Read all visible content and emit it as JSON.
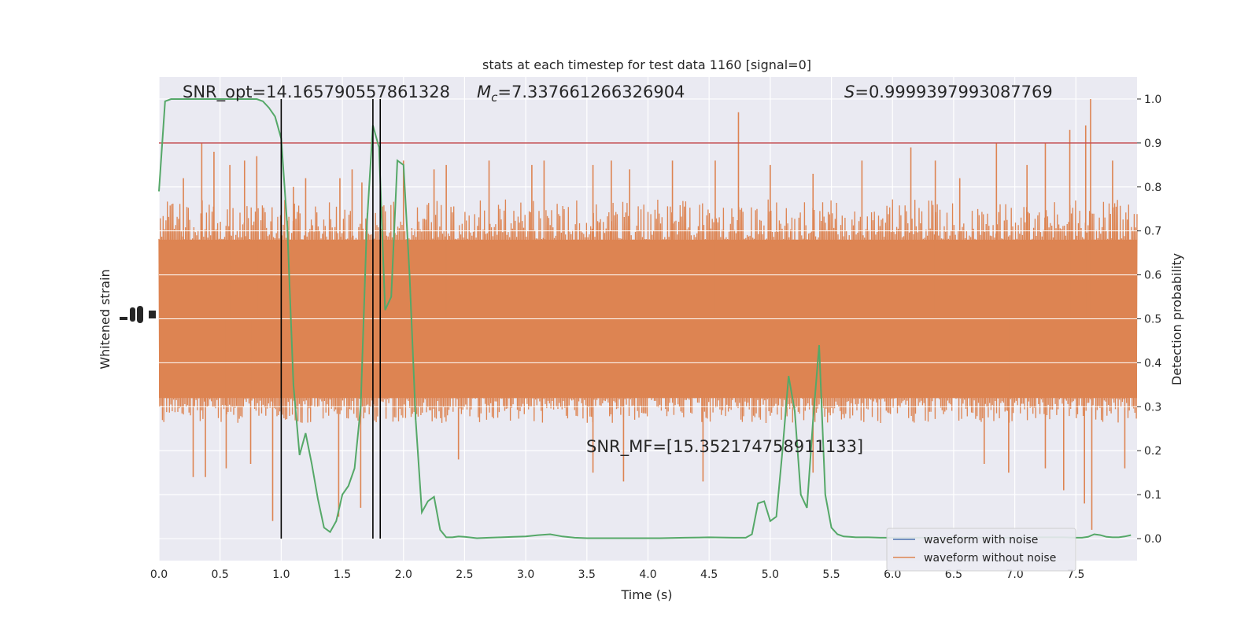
{
  "chart_data": {
    "type": "line",
    "title": "stats at each timestep for test data 1160 [signal=0]",
    "xlabel": "Time (s)",
    "ylabel_left": "Whitened strain",
    "ylabel_right": "Detection probability",
    "xlim": [
      0,
      8
    ],
    "ylim_right": [
      -0.05,
      1.05
    ],
    "x_ticks": [
      "0.0",
      "0.5",
      "1.0",
      "1.5",
      "2.0",
      "2.5",
      "3.0",
      "3.5",
      "4.0",
      "4.5",
      "5.0",
      "5.5",
      "6.0",
      "6.5",
      "7.0",
      "7.5"
    ],
    "y_ticks_right": [
      "0.0",
      "0.1",
      "0.2",
      "0.3",
      "0.4",
      "0.5",
      "0.6",
      "0.7",
      "0.8",
      "0.9",
      "1.0"
    ],
    "grid": true,
    "annotations": {
      "snr_opt": "SNR_opt=14.165790557861328",
      "mc_symbol": "M",
      "mc_sub": "c",
      "mc_value": "=7.337661266326904",
      "s_symbol": "S",
      "s_value": "=0.9999397993087769",
      "snr_mf": "SNR_MF=[15.352174758911133]"
    },
    "threshold": 0.9,
    "vertical_lines": [
      1.0,
      1.75,
      1.81
    ],
    "series": [
      {
        "name": "waveform with noise",
        "color": "#4c72b0"
      },
      {
        "name": "waveform without noise",
        "color": "#dd8452"
      }
    ],
    "strain_envelope": {
      "band_low": 0.32,
      "band_high": 0.68,
      "typical_low": 0.27,
      "typical_high": 0.76
    },
    "strain_spikes": [
      {
        "x": 0.2,
        "y": 0.82
      },
      {
        "x": 0.35,
        "y": 0.9
      },
      {
        "x": 0.45,
        "y": 0.88
      },
      {
        "x": 0.58,
        "y": 0.85
      },
      {
        "x": 0.7,
        "y": 0.86
      },
      {
        "x": 0.8,
        "y": 0.87
      },
      {
        "x": 1.1,
        "y": 0.8
      },
      {
        "x": 1.2,
        "y": 0.82
      },
      {
        "x": 1.48,
        "y": 0.82
      },
      {
        "x": 1.58,
        "y": 0.84
      },
      {
        "x": 1.66,
        "y": 0.81
      },
      {
        "x": 2.0,
        "y": 0.86
      },
      {
        "x": 2.25,
        "y": 0.84
      },
      {
        "x": 2.35,
        "y": 0.85
      },
      {
        "x": 2.7,
        "y": 0.86
      },
      {
        "x": 3.05,
        "y": 0.85
      },
      {
        "x": 3.15,
        "y": 0.86
      },
      {
        "x": 3.55,
        "y": 0.85
      },
      {
        "x": 3.7,
        "y": 0.86
      },
      {
        "x": 3.85,
        "y": 0.84
      },
      {
        "x": 4.2,
        "y": 0.86
      },
      {
        "x": 4.55,
        "y": 0.86
      },
      {
        "x": 4.74,
        "y": 0.97
      },
      {
        "x": 5.0,
        "y": 0.85
      },
      {
        "x": 5.35,
        "y": 0.83
      },
      {
        "x": 5.75,
        "y": 0.86
      },
      {
        "x": 6.15,
        "y": 0.89
      },
      {
        "x": 6.35,
        "y": 0.86
      },
      {
        "x": 6.55,
        "y": 0.82
      },
      {
        "x": 6.85,
        "y": 0.9
      },
      {
        "x": 7.1,
        "y": 0.85
      },
      {
        "x": 7.25,
        "y": 0.9
      },
      {
        "x": 7.45,
        "y": 0.93
      },
      {
        "x": 7.58,
        "y": 0.94
      },
      {
        "x": 7.62,
        "y": 1.0
      },
      {
        "x": 7.8,
        "y": 0.86
      },
      {
        "x": 0.28,
        "y": 0.14
      },
      {
        "x": 0.38,
        "y": 0.14
      },
      {
        "x": 0.55,
        "y": 0.16
      },
      {
        "x": 0.75,
        "y": 0.17
      },
      {
        "x": 0.93,
        "y": 0.04
      },
      {
        "x": 1.47,
        "y": 0.05
      },
      {
        "x": 1.65,
        "y": 0.07
      },
      {
        "x": 2.45,
        "y": 0.18
      },
      {
        "x": 3.55,
        "y": 0.15
      },
      {
        "x": 3.8,
        "y": 0.13
      },
      {
        "x": 4.45,
        "y": 0.13
      },
      {
        "x": 5.35,
        "y": 0.15
      },
      {
        "x": 6.75,
        "y": 0.17
      },
      {
        "x": 6.95,
        "y": 0.15
      },
      {
        "x": 7.25,
        "y": 0.16
      },
      {
        "x": 7.4,
        "y": 0.11
      },
      {
        "x": 7.57,
        "y": 0.08
      },
      {
        "x": 7.63,
        "y": 0.02
      },
      {
        "x": 7.9,
        "y": 0.16
      }
    ],
    "detection_probability": {
      "x": [
        0.0,
        0.05,
        0.1,
        0.2,
        0.3,
        0.4,
        0.5,
        0.6,
        0.7,
        0.8,
        0.85,
        0.9,
        0.95,
        1.0,
        1.05,
        1.1,
        1.15,
        1.2,
        1.25,
        1.3,
        1.35,
        1.4,
        1.45,
        1.5,
        1.55,
        1.6,
        1.65,
        1.7,
        1.75,
        1.8,
        1.85,
        1.9,
        1.95,
        2.0,
        2.05,
        2.1,
        2.15,
        2.2,
        2.25,
        2.3,
        2.35,
        2.4,
        2.45,
        2.5,
        2.6,
        2.7,
        2.8,
        2.9,
        3.0,
        3.1,
        3.2,
        3.3,
        3.4,
        3.5,
        3.7,
        3.9,
        4.1,
        4.3,
        4.5,
        4.7,
        4.8,
        4.85,
        4.9,
        4.95,
        5.0,
        5.05,
        5.1,
        5.15,
        5.2,
        5.25,
        5.3,
        5.35,
        5.4,
        5.45,
        5.5,
        5.55,
        5.6,
        5.65,
        5.7,
        5.75,
        5.8,
        5.9,
        6.0,
        6.2,
        6.4,
        6.6,
        6.8,
        7.0,
        7.2,
        7.4,
        7.5,
        7.55,
        7.6,
        7.65,
        7.7,
        7.75,
        7.8,
        7.85,
        7.9,
        7.95
      ],
      "y": [
        0.79,
        0.995,
        1.0,
        1.0,
        1.0,
        1.0,
        1.0,
        1.0,
        1.0,
        1.0,
        0.995,
        0.98,
        0.96,
        0.91,
        0.71,
        0.35,
        0.19,
        0.24,
        0.17,
        0.09,
        0.025,
        0.015,
        0.04,
        0.1,
        0.12,
        0.16,
        0.3,
        0.71,
        0.94,
        0.89,
        0.52,
        0.55,
        0.86,
        0.85,
        0.6,
        0.27,
        0.06,
        0.085,
        0.095,
        0.02,
        0.003,
        0.003,
        0.005,
        0.004,
        0.001,
        0.002,
        0.003,
        0.004,
        0.005,
        0.008,
        0.01,
        0.005,
        0.002,
        0.001,
        0.001,
        0.001,
        0.001,
        0.002,
        0.003,
        0.002,
        0.002,
        0.01,
        0.08,
        0.085,
        0.04,
        0.05,
        0.2,
        0.37,
        0.29,
        0.1,
        0.07,
        0.27,
        0.44,
        0.1,
        0.025,
        0.01,
        0.005,
        0.004,
        0.003,
        0.003,
        0.003,
        0.002,
        0.002,
        0.002,
        0.002,
        0.003,
        0.002,
        0.002,
        0.003,
        0.003,
        0.002,
        0.002,
        0.004,
        0.01,
        0.008,
        0.004,
        0.003,
        0.003,
        0.005,
        0.008
      ],
      "color": "#55a868"
    },
    "threshold_color": "#c44e52",
    "vline_color": "#000000",
    "plot_bg": "#eaeaf2"
  }
}
